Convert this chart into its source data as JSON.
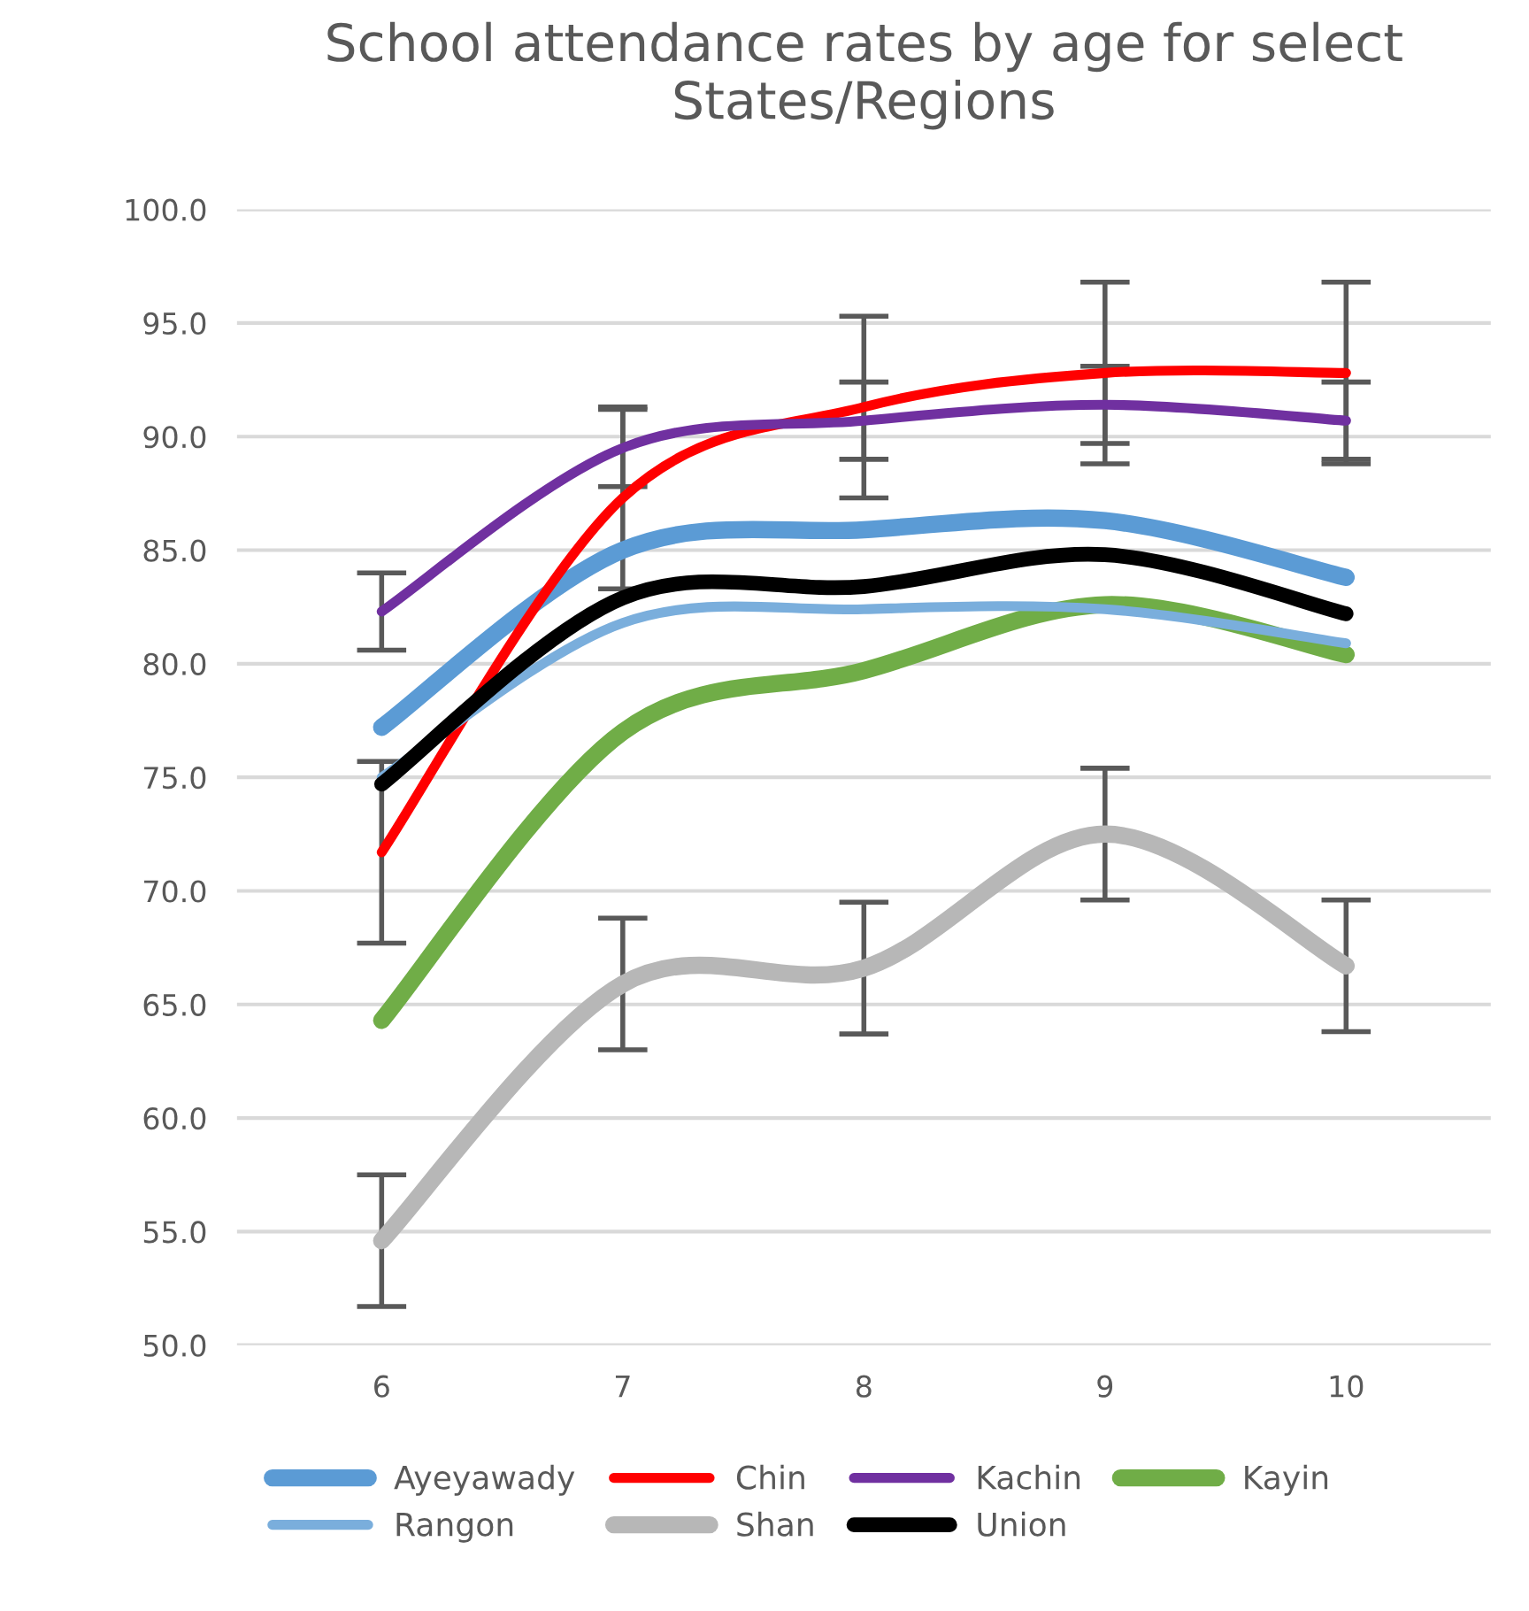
{
  "chart_data": {
    "type": "line",
    "title": "School attendance rates by age for select States/Regions",
    "categories": [
      "6",
      "7",
      "8",
      "9",
      "10"
    ],
    "series": [
      {
        "name": "Ayeyawady",
        "color": "#5b9bd5",
        "values": [
          77.2,
          85.0,
          85.9,
          86.3,
          83.8
        ]
      },
      {
        "name": "Chin",
        "color": "#ff0000",
        "values": [
          71.7,
          87.3,
          91.3,
          92.8,
          92.8
        ],
        "errors": [
          4.0,
          4.0,
          4.0,
          4.0,
          4.0
        ]
      },
      {
        "name": "Kachin",
        "color": "#7030a0",
        "values": [
          82.3,
          89.5,
          90.7,
          91.4,
          90.7
        ],
        "errors": [
          1.7,
          1.7,
          1.7,
          1.7,
          1.7
        ]
      },
      {
        "name": "Kayin",
        "color": "#70ad47",
        "values": [
          64.3,
          77.0,
          79.7,
          82.6,
          80.4
        ]
      },
      {
        "name": "Rangon",
        "color": "#7aaedc",
        "values": [
          75.0,
          81.8,
          82.4,
          82.4,
          80.9
        ]
      },
      {
        "name": "Shan",
        "color": "#b7b7b7",
        "values": [
          54.6,
          65.9,
          66.6,
          72.5,
          66.7
        ],
        "errors": [
          2.9,
          2.9,
          2.9,
          2.9,
          2.9
        ]
      },
      {
        "name": "Union",
        "color": "#000000",
        "values": [
          74.7,
          82.9,
          83.4,
          84.8,
          82.2
        ]
      }
    ],
    "ylim": [
      50,
      100
    ],
    "yticks": [
      {
        "value": 50,
        "label": "50.0"
      },
      {
        "value": 55,
        "label": "55.0"
      },
      {
        "value": 60,
        "label": "60.0"
      },
      {
        "value": 65,
        "label": "65.0"
      },
      {
        "value": 70,
        "label": "70.0"
      },
      {
        "value": 75,
        "label": "75.0"
      },
      {
        "value": 80,
        "label": "80.0"
      },
      {
        "value": 85,
        "label": "85.0"
      },
      {
        "value": 90,
        "label": "90.0"
      },
      {
        "value": 95,
        "label": "95.0"
      },
      {
        "value": 100,
        "label": "100.0"
      }
    ],
    "grid": "y",
    "legend": "bottom",
    "marker": "none",
    "line_style": "solid"
  }
}
